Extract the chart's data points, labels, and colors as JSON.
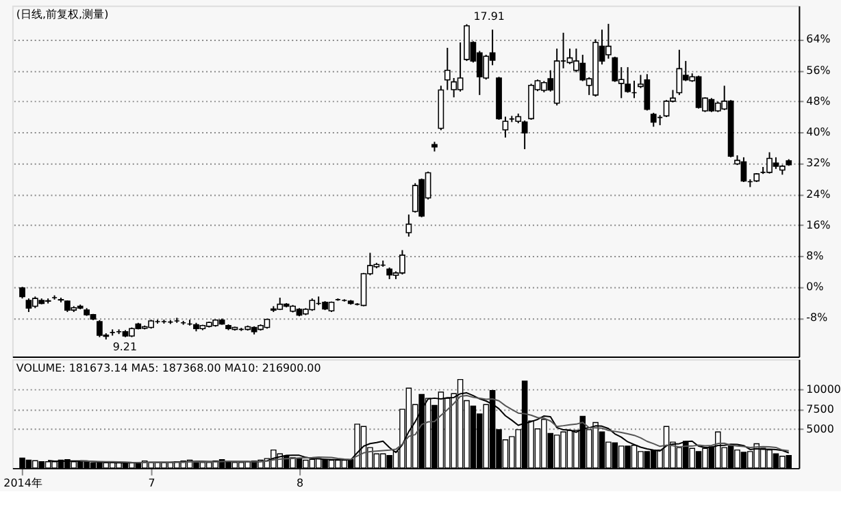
{
  "chart_data": [
    {
      "type": "candlestick",
      "title": "(日线,前复权,测量)",
      "grid": "y",
      "tick_labels": "y",
      "categories": [
        null,
        null,
        null,
        null,
        null,
        null,
        null,
        null,
        null,
        null,
        null,
        null,
        null,
        null,
        null,
        null,
        null,
        null,
        null,
        null,
        null,
        null,
        null,
        null,
        null,
        null,
        null,
        null,
        null,
        null,
        null,
        null,
        null,
        null,
        null,
        null,
        null,
        null,
        null,
        null,
        null,
        null,
        null,
        null,
        null,
        null,
        null,
        null,
        null,
        null,
        null,
        null,
        null,
        null,
        null,
        null,
        null,
        null,
        null,
        null,
        null,
        null,
        null,
        null,
        null,
        null,
        null,
        null,
        null,
        null,
        null,
        null,
        null,
        null,
        null,
        null,
        null,
        null,
        null,
        null,
        null,
        null,
        null,
        null,
        null,
        null,
        null,
        null,
        null,
        null,
        null,
        null,
        null,
        null,
        null,
        null,
        null,
        null,
        null,
        null,
        null,
        null,
        null,
        null,
        null,
        null,
        null,
        null,
        null,
        null,
        null,
        null,
        null,
        null,
        null,
        null,
        null,
        null,
        null,
        null
      ],
      "ylim": [
        -18,
        72.7
      ],
      "yticks": [
        {
          "value": -8,
          "label": "-8%"
        },
        {
          "value": 0,
          "label": "0%"
        },
        {
          "value": 8,
          "label": "8%"
        },
        {
          "value": 16,
          "label": "16%"
        },
        {
          "value": 24,
          "label": "24%"
        },
        {
          "value": 32,
          "label": "32%"
        },
        {
          "value": 40,
          "label": "40%"
        },
        {
          "value": 48,
          "label": "48%"
        },
        {
          "value": 56,
          "label": "56%"
        },
        {
          "value": 64,
          "label": "64%"
        }
      ],
      "ohlc": [
        [
          -0.3,
          0,
          -3,
          -2.5
        ],
        [
          -3.5,
          -3,
          -6.5,
          -5.5
        ],
        [
          -5,
          -2.5,
          -5.5,
          -3
        ],
        [
          -3.5,
          -3,
          -4.5,
          -4.3
        ],
        [
          -3.7,
          -3,
          -4.3,
          -3.6
        ],
        [
          -2.8,
          -2.2,
          -3.3,
          -2.8
        ],
        [
          -3.3,
          -2.8,
          -4,
          -3.4
        ],
        [
          -3.7,
          -3.5,
          -6.5,
          -6
        ],
        [
          -6,
          -5,
          -6.5,
          -5.4
        ],
        [
          -5,
          -4.6,
          -5.8,
          -5.5
        ],
        [
          -6,
          -5.5,
          -7.5,
          -7.2
        ],
        [
          -7.2,
          -7,
          -8.6,
          -8.3
        ],
        [
          -9,
          -8.6,
          -13,
          -12.5
        ],
        [
          -12.8,
          -12,
          -13.6,
          -12.5
        ],
        [
          -11.8,
          -11,
          -12.6,
          -11.8
        ],
        [
          -11.6,
          -11,
          -12.2,
          -11.6
        ],
        [
          -11.6,
          -11.2,
          -13,
          -12.7
        ],
        [
          -12.7,
          -10.5,
          -13,
          -10.8
        ],
        [
          -9.6,
          -9.3,
          -11,
          -10.8
        ],
        [
          -10.7,
          -10,
          -11,
          -10.3
        ],
        [
          -10.5,
          -8.5,
          -10.8,
          -8.8
        ],
        [
          -9,
          -8.5,
          -9.5,
          -9
        ],
        [
          -9,
          -8.5,
          -9.5,
          -9
        ],
        [
          -9.1,
          -8.6,
          -9.6,
          -9.1
        ],
        [
          -8.8,
          -8,
          -9.3,
          -8.8
        ],
        [
          -9.3,
          -8.8,
          -9.8,
          -9.3
        ],
        [
          -9.6,
          -8.5,
          -10,
          -9.6
        ],
        [
          -9.8,
          -9.3,
          -11.5,
          -10.8
        ],
        [
          -10.8,
          -9.8,
          -11.2,
          -10
        ],
        [
          -10.2,
          -9,
          -10.5,
          -9.2
        ],
        [
          -10,
          -8.4,
          -10.3,
          -8.6
        ],
        [
          -8.6,
          -8.2,
          -9.8,
          -9.6
        ],
        [
          -10,
          -9.7,
          -11.2,
          -10.8
        ],
        [
          -11,
          -10.3,
          -11.3,
          -10.5
        ],
        [
          -11,
          -10.6,
          -11.4,
          -11
        ],
        [
          -11,
          -10,
          -11.3,
          -10.3
        ],
        [
          -10.5,
          -10.2,
          -12.3,
          -11.6
        ],
        [
          -11,
          -9.7,
          -11.3,
          -10
        ],
        [
          -10.5,
          -8.2,
          -10.8,
          -8.4
        ],
        [
          -6,
          -5,
          -6.5,
          -5.7
        ],
        [
          -5.8,
          -2.8,
          -6,
          -4.5
        ],
        [
          -4.5,
          -4.2,
          -5.3,
          -5
        ],
        [
          -6.3,
          -4.7,
          -6.6,
          -5
        ],
        [
          -5.8,
          -5.5,
          -7.6,
          -7.3
        ],
        [
          -7,
          -5.5,
          -7.3,
          -5.8
        ],
        [
          -5.9,
          -3,
          -6.2,
          -3.5
        ],
        [
          -4.3,
          -2.5,
          -4.7,
          -4.3
        ],
        [
          -4,
          -3.7,
          -6,
          -5.7
        ],
        [
          -6.2,
          -3.8,
          -6.5,
          -4
        ],
        [
          -3.3,
          -3,
          -3.6,
          -3.3
        ],
        [
          -3.5,
          -3.2,
          -3.8,
          -3.5
        ],
        [
          -3.7,
          -3.4,
          -4.6,
          -4.3
        ],
        [
          -4.5,
          -4.2,
          -4.8,
          -4.5
        ],
        [
          -4.8,
          3.6,
          -5,
          3.4
        ],
        [
          3.4,
          8.8,
          3,
          5.5
        ],
        [
          5.2,
          6.2,
          4.8,
          5.8
        ],
        [
          5.6,
          6.8,
          5.2,
          5.6
        ],
        [
          4.6,
          5,
          2,
          3.1
        ],
        [
          3,
          4,
          2,
          3.6
        ],
        [
          3.6,
          9.5,
          3.2,
          8.2
        ],
        [
          14,
          18.7,
          13,
          16.2
        ],
        [
          19.5,
          26.8,
          19.2,
          26.2
        ],
        [
          27.7,
          28,
          18,
          18.3
        ],
        [
          23,
          29.8,
          22.6,
          29.5
        ],
        [
          36.8,
          37.5,
          35,
          36.2
        ],
        [
          41,
          52,
          40.5,
          50.9
        ],
        [
          53.5,
          61.8,
          50.9,
          56
        ],
        [
          51,
          54,
          49,
          53
        ],
        [
          51,
          63.2,
          50.5,
          54
        ],
        [
          58.8,
          67.9,
          58.4,
          67.5
        ],
        [
          63.2,
          63.5,
          58,
          58.4
        ],
        [
          60.5,
          61,
          49.6,
          54.3
        ],
        [
          54,
          60,
          53.6,
          59.6
        ],
        [
          60.5,
          66.5,
          57.3,
          58.6
        ],
        [
          54,
          54.3,
          43.2,
          43.5
        ],
        [
          40.6,
          44,
          38.6,
          42.8
        ],
        [
          43.4,
          44.2,
          42.6,
          43.4
        ],
        [
          42.8,
          44.8,
          42.3,
          44
        ],
        [
          42.6,
          43,
          35.6,
          39.8
        ],
        [
          43.5,
          52.5,
          43.2,
          52.1
        ],
        [
          51,
          53.6,
          50.6,
          53.3
        ],
        [
          50.8,
          53.2,
          50.3,
          52.8
        ],
        [
          53.8,
          56,
          50.5,
          50.9
        ],
        [
          47.5,
          61.6,
          46.9,
          58.4
        ],
        [
          58.4,
          65.7,
          56.5,
          58.4
        ],
        [
          58,
          61.6,
          57.6,
          59.2
        ],
        [
          56,
          61.6,
          55.5,
          58.4
        ],
        [
          57.8,
          60,
          53.2,
          53.5
        ],
        [
          52.1,
          54.2,
          49.6,
          53.8
        ],
        [
          49.6,
          64,
          49.2,
          63.2
        ],
        [
          62.2,
          66.5,
          57.5,
          58.4
        ],
        [
          60,
          68,
          59,
          62.2
        ],
        [
          59.2,
          59.5,
          53,
          53.3
        ],
        [
          52.6,
          56.8,
          48.8,
          53.6
        ],
        [
          52.4,
          56.8,
          50.2,
          50.5
        ],
        [
          50.2,
          53.3,
          48.8,
          50.2
        ],
        [
          51.8,
          54.8,
          51.4,
          52.4
        ],
        [
          53.5,
          55,
          45.6,
          45.9
        ],
        [
          44.6,
          45,
          41.4,
          42.6
        ],
        [
          43.8,
          44.4,
          41.8,
          43.8
        ],
        [
          44.2,
          48.3,
          43.9,
          48
        ],
        [
          48,
          50.9,
          47.7,
          48.8
        ],
        [
          50.2,
          61.3,
          49.6,
          56.4
        ],
        [
          54.7,
          58.4,
          53.2,
          53.5
        ],
        [
          53.3,
          55.2,
          53,
          54.3
        ],
        [
          54.3,
          54.6,
          46.1,
          46.4
        ],
        [
          45.5,
          49,
          45.2,
          48.8
        ],
        [
          48.4,
          48.8,
          45.2,
          45.5
        ],
        [
          45.5,
          47.9,
          45.2,
          47.5
        ],
        [
          46,
          52,
          45.7,
          48
        ],
        [
          48,
          48.3,
          33.5,
          33.8
        ],
        [
          31.8,
          34,
          31.5,
          32.7
        ],
        [
          32.3,
          33.5,
          27.1,
          27.4
        ],
        [
          27.2,
          27.8,
          25.8,
          27.2
        ],
        [
          27.4,
          29.4,
          27.1,
          29.2
        ],
        [
          29.6,
          31,
          29.2,
          29.6
        ],
        [
          29.6,
          34.8,
          29.3,
          33.2
        ],
        [
          32,
          33.5,
          30.5,
          31.2
        ],
        [
          30.2,
          31.5,
          29,
          31.2
        ],
        [
          32.6,
          33,
          31.3,
          31.6
        ]
      ],
      "colors": [
        "#000000",
        "#000000",
        "#ffffff",
        "#000000",
        "#ffffff",
        "#000000",
        "#000000",
        "#000000",
        "#ffffff",
        "#000000",
        "#000000",
        "#000000",
        "#000000",
        "#ffffff",
        "#000000",
        "#000000",
        "#000000",
        "#ffffff",
        "#000000",
        "#ffffff",
        "#ffffff",
        "#000000",
        "#000000",
        "#000000",
        "#000000",
        "#000000",
        "#000000",
        "#000000",
        "#ffffff",
        "#ffffff",
        "#ffffff",
        "#000000",
        "#000000",
        "#ffffff",
        "#000000",
        "#ffffff",
        "#000000",
        "#ffffff",
        "#ffffff",
        "#ffffff",
        "#ffffff",
        "#000000",
        "#ffffff",
        "#000000",
        "#ffffff",
        "#ffffff",
        "#000000",
        "#000000",
        "#ffffff",
        "#000000",
        "#000000",
        "#000000",
        "#000000",
        "#ffffff",
        "#ffffff",
        "#ffffff",
        "#000000",
        "#000000",
        "#ffffff",
        "#ffffff",
        "#ffffff",
        "#ffffff",
        "#000000",
        "#ffffff",
        "#000000",
        "#ffffff",
        "#ffffff",
        "#ffffff",
        "#ffffff",
        "#ffffff",
        "#000000",
        "#000000",
        "#ffffff",
        "#000000",
        "#000000",
        "#ffffff",
        "#000000",
        "#ffffff",
        "#000000",
        "#ffffff",
        "#ffffff",
        "#ffffff",
        "#000000",
        "#ffffff",
        "#000000",
        "#ffffff",
        "#ffffff",
        "#000000",
        "#ffffff",
        "#ffffff",
        "#000000",
        "#ffffff",
        "#000000",
        "#ffffff",
        "#000000",
        "#000000",
        "#ffffff",
        "#000000",
        "#000000",
        "#000000",
        "#ffffff",
        "#ffffff",
        "#ffffff",
        "#000000",
        "#ffffff",
        "#000000",
        "#ffffff",
        "#000000",
        "#ffffff",
        "#ffffff",
        "#000000",
        "#ffffff",
        "#000000",
        "#000000",
        "#ffffff",
        "#000000",
        "#ffffff",
        "#000000",
        "#ffffff",
        "#000000"
      ],
      "annotations": [
        {
          "text": "17.91",
          "y": 67.9
        },
        {
          "text": "9.21",
          "y": -13.6
        }
      ]
    },
    {
      "type": "bar",
      "title": "VOLUME: 181673.14 MA5: 187368.00 MA10: 216900.00",
      "grid": "y",
      "categories": [
        "2014年",
        null,
        null,
        null,
        null,
        null,
        null,
        null,
        null,
        null,
        null,
        null,
        null,
        null,
        null,
        null,
        null,
        null,
        null,
        null,
        "7",
        null,
        null,
        null,
        null,
        null,
        null,
        null,
        null,
        null,
        null,
        null,
        null,
        null,
        null,
        null,
        null,
        null,
        null,
        null,
        null,
        null,
        null,
        "8",
        null,
        null,
        null,
        null,
        null,
        null,
        null,
        null,
        null,
        null,
        null,
        null,
        null,
        null,
        null,
        null,
        null,
        null,
        null,
        null,
        null,
        null,
        null,
        null,
        null,
        null,
        null,
        null,
        null,
        null,
        null,
        null,
        null,
        null,
        null,
        null,
        null,
        null,
        null,
        null,
        null,
        null,
        null,
        null,
        null,
        null,
        null,
        null,
        null,
        null,
        null,
        null,
        null,
        null,
        null,
        null,
        null,
        null,
        null,
        null,
        null,
        null,
        null,
        null,
        null,
        null,
        null,
        null,
        null,
        null,
        null,
        null,
        null,
        null,
        null,
        null
      ],
      "ylim": [
        0,
        13900
      ],
      "yticks": [
        5000,
        7500,
        10000
      ],
      "values": [
        1260,
        1000,
        930,
        800,
        800,
        800,
        1000,
        1060,
        800,
        800,
        800,
        660,
        700,
        660,
        660,
        660,
        660,
        700,
        660,
        900,
        700,
        700,
        660,
        700,
        800,
        900,
        1000,
        800,
        700,
        700,
        900,
        1060,
        800,
        700,
        700,
        800,
        900,
        1000,
        1200,
        2300,
        1800,
        1500,
        1300,
        1200,
        1000,
        1100,
        1200,
        1060,
        1000,
        1000,
        1000,
        1060,
        5600,
        5300,
        2600,
        1800,
        1800,
        1600,
        2100,
        7500,
        10200,
        8100,
        9400,
        8900,
        8000,
        9700,
        8900,
        9500,
        11300,
        8600,
        7900,
        6900,
        8100,
        9900,
        4900,
        3600,
        4000,
        4900,
        11100,
        6000,
        5000,
        6200,
        4400,
        4200,
        4600,
        4800,
        4800,
        6600,
        4900,
        5800,
        4600,
        3300,
        3200,
        2800,
        2800,
        2900,
        2100,
        2100,
        2300,
        2300,
        5300,
        3300,
        2600,
        3400,
        2500,
        2100,
        2500,
        2700,
        4600,
        2600,
        2800,
        2300,
        2000,
        2100,
        3100,
        2500,
        2300,
        1800,
        1500,
        1600
      ],
      "colors": [
        "#000000",
        "#000000",
        "#ffffff",
        "#000000",
        "#ffffff",
        "#ffffff",
        "#000000",
        "#000000",
        "#ffffff",
        "#000000",
        "#000000",
        "#000000",
        "#000000",
        "#ffffff",
        "#ffffff",
        "#ffffff",
        "#000000",
        "#ffffff",
        "#000000",
        "#ffffff",
        "#ffffff",
        "#ffffff",
        "#ffffff",
        "#ffffff",
        "#ffffff",
        "#ffffff",
        "#ffffff",
        "#000000",
        "#ffffff",
        "#ffffff",
        "#ffffff",
        "#000000",
        "#000000",
        "#ffffff",
        "#ffffff",
        "#ffffff",
        "#000000",
        "#ffffff",
        "#ffffff",
        "#ffffff",
        "#ffffff",
        "#000000",
        "#ffffff",
        "#000000",
        "#ffffff",
        "#ffffff",
        "#ffffff",
        "#000000",
        "#ffffff",
        "#ffffff",
        "#ffffff",
        "#000000",
        "#ffffff",
        "#ffffff",
        "#ffffff",
        "#ffffff",
        "#ffffff",
        "#000000",
        "#ffffff",
        "#ffffff",
        "#ffffff",
        "#ffffff",
        "#000000",
        "#ffffff",
        "#000000",
        "#ffffff",
        "#ffffff",
        "#ffffff",
        "#ffffff",
        "#ffffff",
        "#000000",
        "#000000",
        "#ffffff",
        "#000000",
        "#000000",
        "#ffffff",
        "#ffffff",
        "#ffffff",
        "#000000",
        "#ffffff",
        "#ffffff",
        "#ffffff",
        "#000000",
        "#ffffff",
        "#ffffff",
        "#ffffff",
        "#ffffff",
        "#000000",
        "#ffffff",
        "#ffffff",
        "#000000",
        "#ffffff",
        "#000000",
        "#ffffff",
        "#000000",
        "#ffffff",
        "#ffffff",
        "#000000",
        "#000000",
        "#ffffff",
        "#ffffff",
        "#ffffff",
        "#ffffff",
        "#000000",
        "#ffffff",
        "#000000",
        "#ffffff",
        "#000000",
        "#ffffff",
        "#ffffff",
        "#000000",
        "#ffffff",
        "#000000",
        "#ffffff",
        "#ffffff",
        "#ffffff",
        "#ffffff",
        "#000000",
        "#ffffff",
        "#000000"
      ],
      "series": [
        {
          "type": "line",
          "color": "#000000",
          "values": [
            null,
            null,
            null,
            null,
            958,
            866,
            866,
            892,
            892,
            892,
            892,
            824,
            752,
            724,
            696,
            668,
            668,
            668,
            668,
            716,
            724,
            732,
            732,
            732,
            752,
            752,
            812,
            840,
            840,
            820,
            820,
            832,
            832,
            832,
            832,
            812,
            780,
            820,
            920,
            1240,
            1440,
            1600,
            1620,
            1620,
            1360,
            1220,
            1160,
            1112,
            1072,
            1072,
            1052,
            1024,
            1932,
            2792,
            3112,
            3252,
            3420,
            2620,
            1980,
            2960,
            4640,
            5900,
            7460,
            8820,
            8920,
            8820,
            8980,
            9000,
            9480,
            9600,
            9240,
            8840,
            8560,
            8160,
            7560,
            6680,
            6100,
            5460,
            5700,
            5920,
            6200,
            6640,
            6540,
            5160,
            4880,
            4840,
            4560,
            5000,
            5140,
            5380,
            5340,
            5040,
            4360,
            3940,
            3340,
            3000,
            2660,
            2440,
            2280,
            2180,
            2820,
            3060,
            3100,
            3380,
            3420,
            2780,
            2620,
            2640,
            2880,
            2900,
            3040,
            3000,
            2860,
            2360,
            2460,
            2400,
            2400,
            2360,
            2240,
            1940
          ]
        },
        {
          "type": "line",
          "color": "#555555",
          "values": [
            null,
            null,
            null,
            null,
            null,
            null,
            null,
            null,
            null,
            925,
            879,
            845,
            822,
            808,
            794,
            767,
            746,
            710,
            696,
            706,
            696,
            700,
            700,
            700,
            734,
            738,
            772,
            786,
            786,
            786,
            786,
            822,
            836,
            836,
            826,
            816,
            806,
            826,
            876,
            1036,
            1126,
            1190,
            1220,
            1270,
            1300,
            1330,
            1380,
            1366,
            1346,
            1216,
            1136,
            1092,
            1522,
            1932,
            2092,
            2152,
            2222,
            2276,
            2386,
            3036,
            4030,
            4260,
            5540,
            5890,
            5940,
            6730,
            7440,
            8230,
            9150,
            9260,
            9030,
            8910,
            8780,
            8820,
            8580,
            7960,
            7470,
            7010,
            6930,
            6740,
            6440,
            6370,
            6000,
            5310,
            5400,
            5520,
            5600,
            5820,
            5150,
            5130,
            5090,
            4800,
            4680,
            4540,
            4360,
            4170,
            3850,
            3400,
            3110,
            2760,
            2910,
            2850,
            2690,
            2780,
            2800,
            2920,
            2840,
            2870,
            3130,
            3160,
            2910,
            2810,
            2750,
            2620,
            2680,
            2720,
            2700,
            2620,
            2300,
            2200
          ]
        }
      ]
    }
  ]
}
